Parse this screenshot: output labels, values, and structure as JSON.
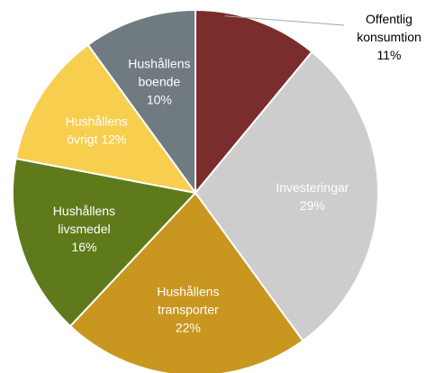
{
  "chart_data": {
    "type": "pie",
    "title": "",
    "slices": [
      {
        "lines": [
          "Offentlig",
          "konsumtion",
          "11%"
        ],
        "value": 11,
        "color": "#7b2c2c",
        "label_color": "#000000",
        "label_mode": "callout"
      },
      {
        "lines": [
          "Investeringar",
          "29%"
        ],
        "value": 29,
        "color": "#cdcdcd",
        "label_color": "#ffffff",
        "label_mode": "inside"
      },
      {
        "lines": [
          "Hushållens",
          "transporter",
          "22%"
        ],
        "value": 22,
        "color": "#c9961f",
        "label_color": "#ffffff",
        "label_mode": "inside"
      },
      {
        "lines": [
          "Hushållens",
          "livsmedel",
          "16%"
        ],
        "value": 16,
        "color": "#5f7a1b",
        "label_color": "#ffffff",
        "label_mode": "inside"
      },
      {
        "lines": [
          "Hushållens",
          "övrigt 12%"
        ],
        "value": 12,
        "color": "#f8ce4f",
        "label_color": "#ffffff",
        "label_mode": "inside"
      },
      {
        "lines": [
          "Hushållens",
          "boende",
          "10%"
        ],
        "value": 10,
        "color": "#6f7b80",
        "label_color": "#ffffff",
        "label_mode": "inside"
      }
    ]
  }
}
